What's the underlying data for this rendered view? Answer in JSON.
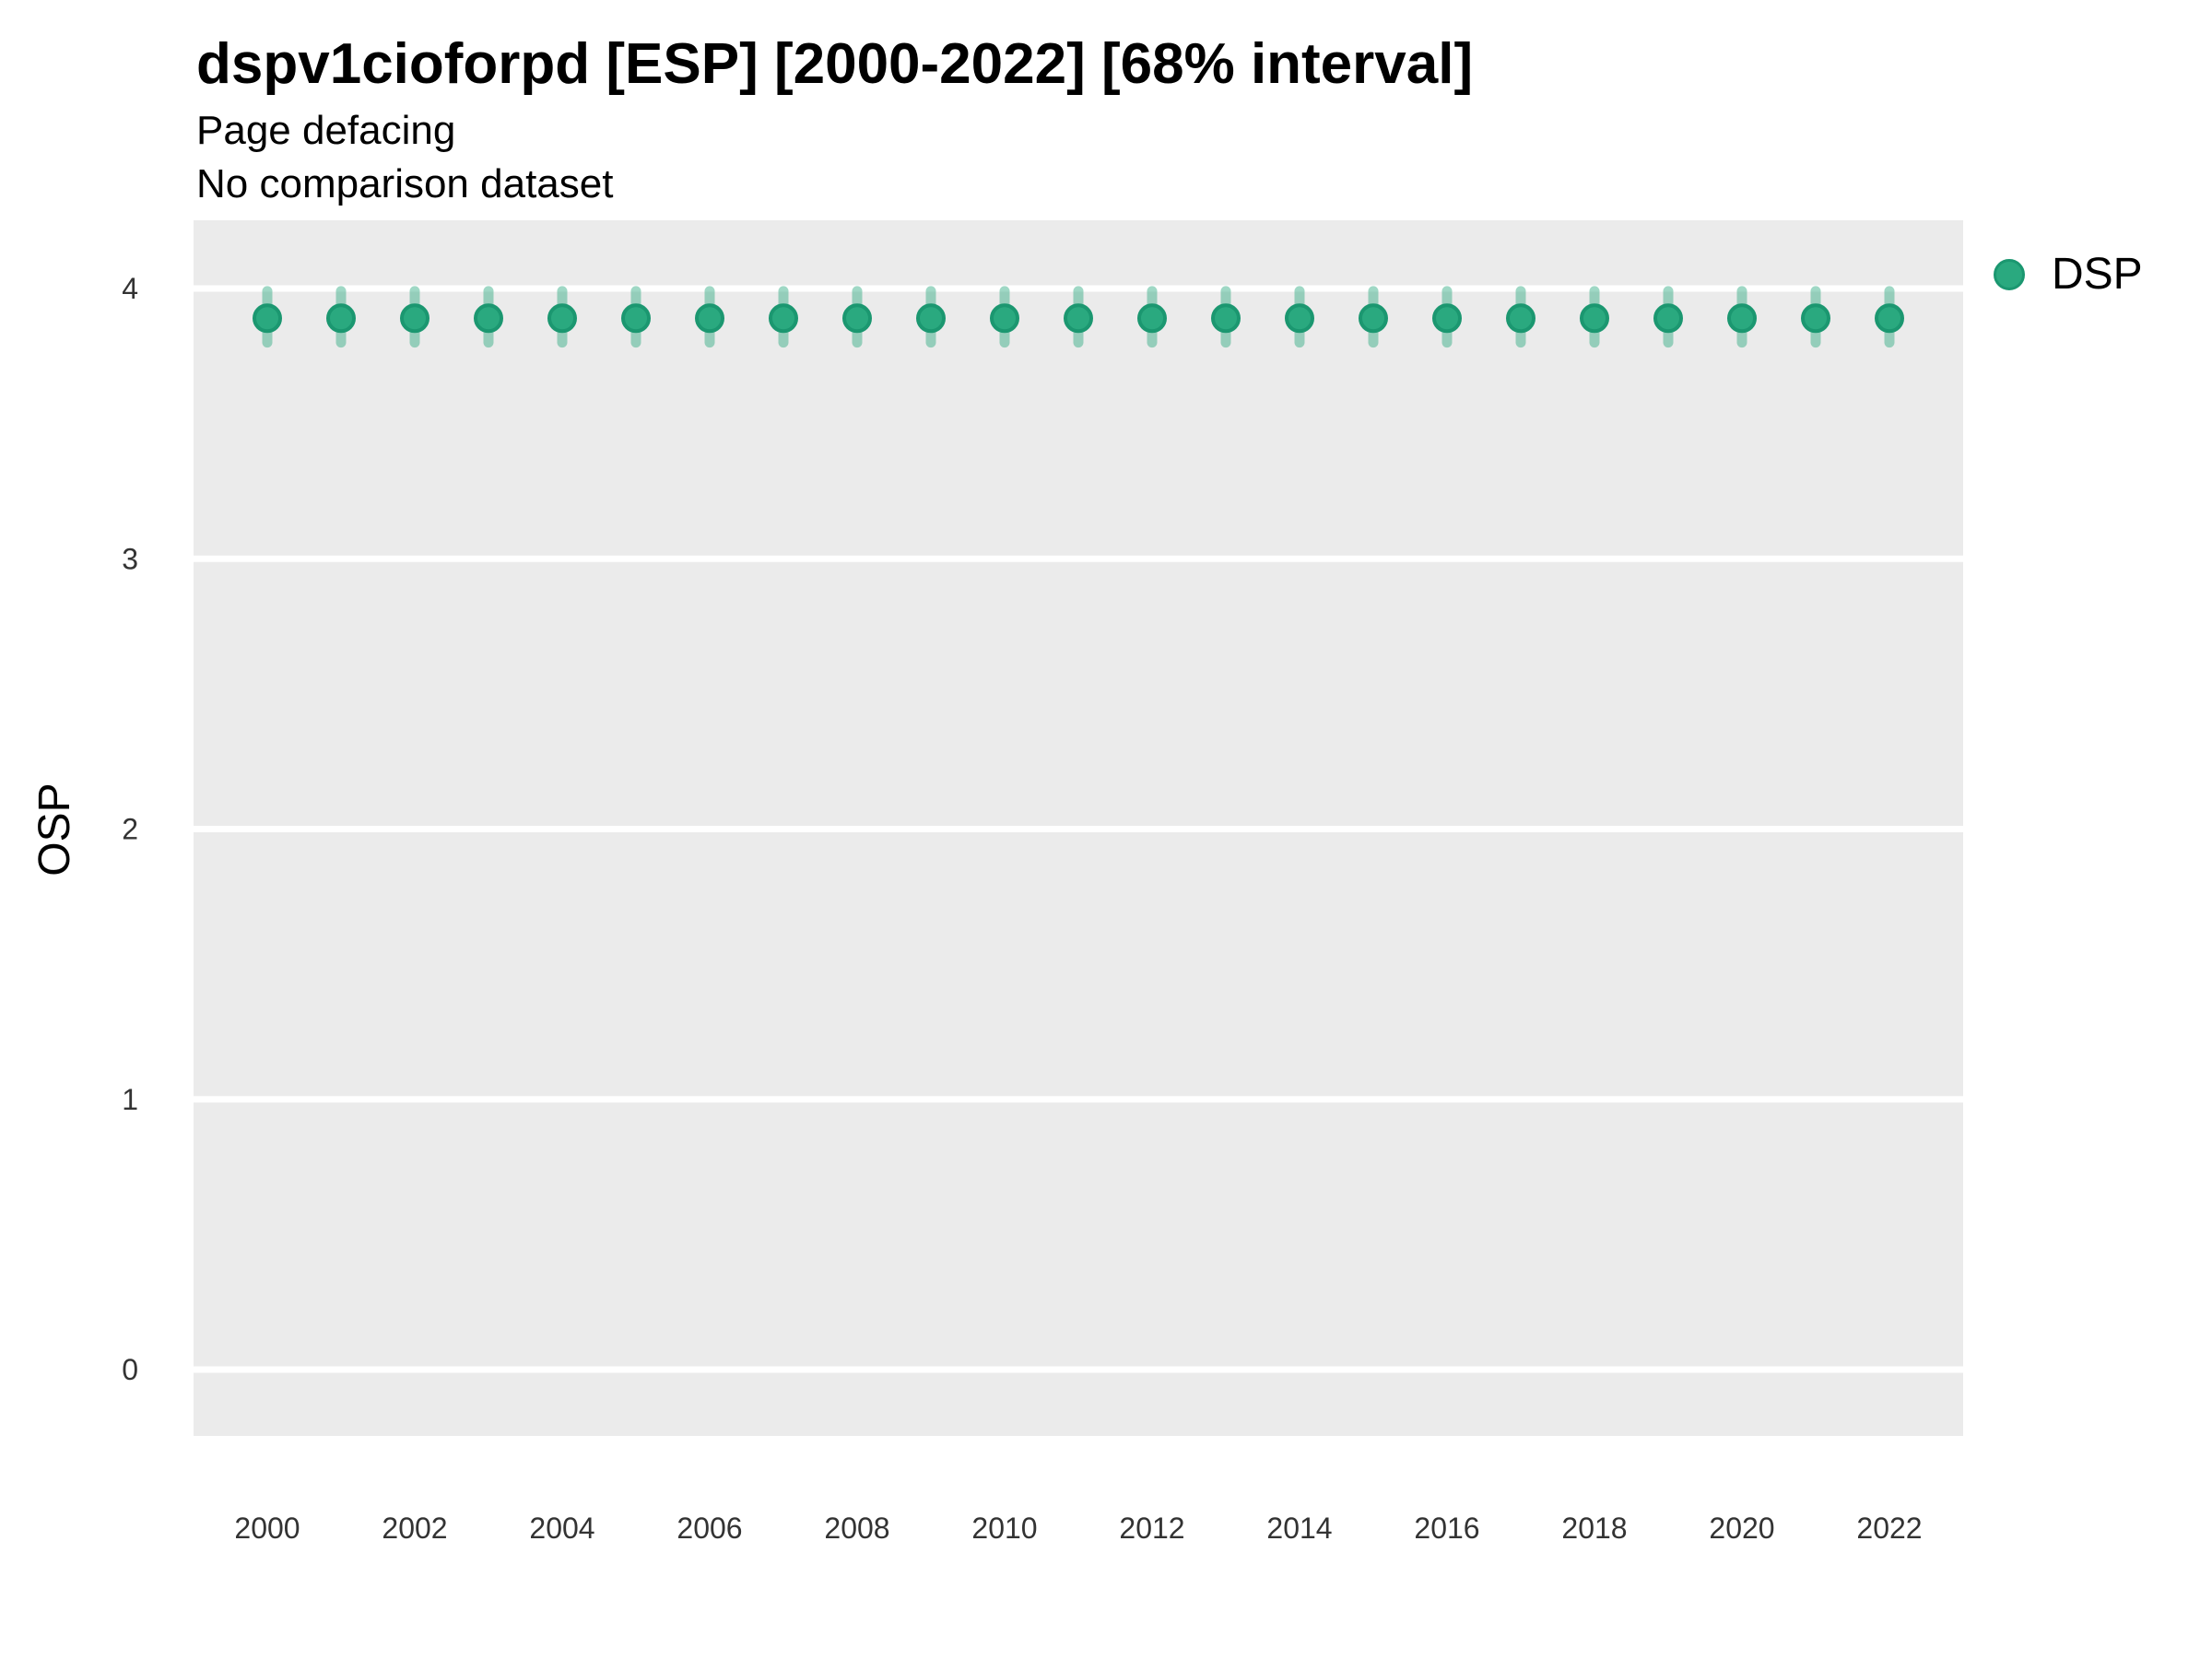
{
  "header": {
    "title": "dspv1cioforpd [ESP] [2000-2022] [68% interval]",
    "subtitle1": "Page defacing",
    "subtitle2": "No comparison dataset"
  },
  "legend": {
    "items": [
      {
        "label": "DSP",
        "color": "#2aa97f",
        "stroke": "#1b9770"
      }
    ]
  },
  "chart_data": {
    "type": "scatter",
    "title": "dspv1cioforpd [ESP] [2000-2022] [68% interval]",
    "subtitle": "Page defacing",
    "note": "No comparison dataset",
    "interval_label": "68% interval",
    "xlabel": "",
    "ylabel": "OSP",
    "x": [
      2000,
      2001,
      2002,
      2003,
      2004,
      2005,
      2006,
      2007,
      2008,
      2009,
      2010,
      2011,
      2012,
      2013,
      2014,
      2015,
      2016,
      2017,
      2018,
      2019,
      2020,
      2021,
      2022
    ],
    "series": [
      {
        "name": "DSP",
        "values": [
          3.89,
          3.89,
          3.89,
          3.89,
          3.89,
          3.89,
          3.89,
          3.89,
          3.89,
          3.89,
          3.89,
          3.89,
          3.89,
          3.89,
          3.89,
          3.89,
          3.89,
          3.89,
          3.89,
          3.89,
          3.89,
          3.89,
          3.89
        ],
        "interval_low": [
          3.8,
          3.8,
          3.8,
          3.8,
          3.8,
          3.8,
          3.8,
          3.8,
          3.8,
          3.8,
          3.8,
          3.8,
          3.8,
          3.8,
          3.8,
          3.8,
          3.8,
          3.8,
          3.8,
          3.8,
          3.8,
          3.8,
          3.8
        ],
        "interval_high": [
          3.99,
          3.99,
          3.99,
          3.99,
          3.99,
          3.99,
          3.99,
          3.99,
          3.99,
          3.99,
          3.99,
          3.99,
          3.99,
          3.99,
          3.99,
          3.99,
          3.99,
          3.99,
          3.99,
          3.99,
          3.99,
          3.99,
          3.99
        ]
      }
    ],
    "yticks": [
      0,
      1,
      2,
      3,
      4
    ],
    "xticks": [
      2000,
      2002,
      2004,
      2006,
      2008,
      2010,
      2012,
      2014,
      2016,
      2018,
      2020,
      2022
    ],
    "ylim": [
      -0.25,
      4.25
    ],
    "grid": "horizontal-major-only",
    "legend_position": "right-top",
    "panel_color": "#EBEBEB",
    "gridline_color": "#FFFFFF",
    "point_color": "#2aa97f",
    "point_stroke_color": "#1b9770",
    "errorbar_color": "rgba(42,168,126,0.45)",
    "tick_text_color": "#333333"
  }
}
